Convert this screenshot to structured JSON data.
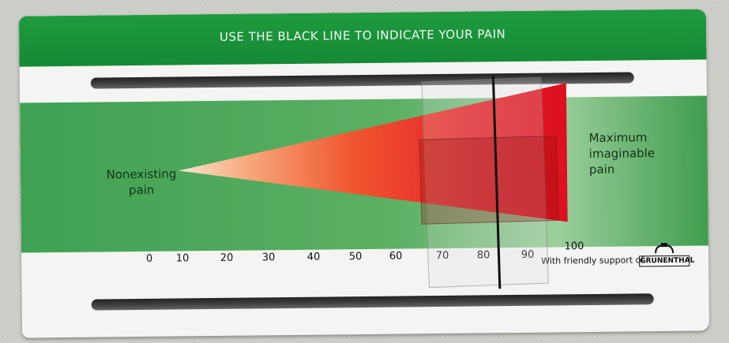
{
  "banner": {
    "title": "USE THE BLACK LINE TO INDICATE YOUR PAIN",
    "color": "#178b36"
  },
  "left_label": {
    "line1": "Nonexisting",
    "line2": "pain"
  },
  "right_label": {
    "line1": "Maximum",
    "line2": "imaginable",
    "line3": "pain"
  },
  "scale": {
    "ticks": [
      "0",
      "10",
      "20",
      "30",
      "40",
      "50",
      "60",
      "70",
      "80",
      "90",
      "100"
    ],
    "indicated_value": 84
  },
  "support": {
    "text": "With friendly support of",
    "brand": "GRUNENTHAL"
  },
  "colors": {
    "green": "#3fa152",
    "red": "#e3101e",
    "peach": "#f7dcc3"
  }
}
